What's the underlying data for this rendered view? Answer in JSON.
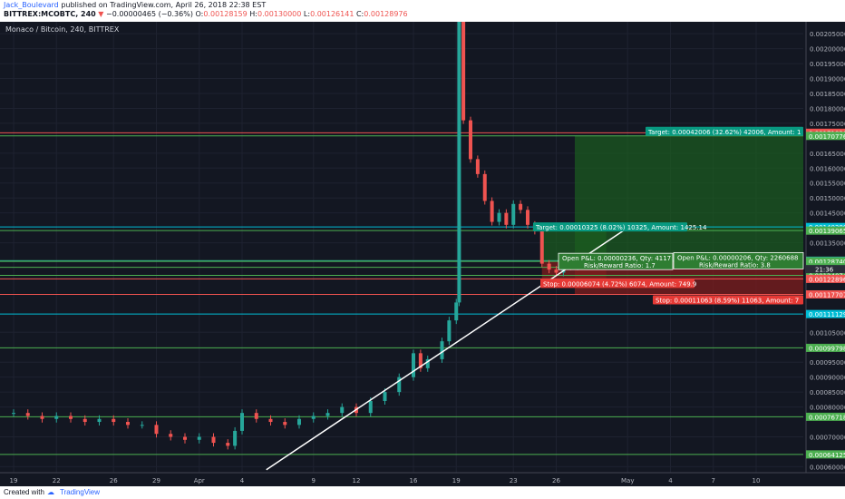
{
  "header": {
    "author": "Jack_Boulevard",
    "published": "published on TradingView.com, April 26, 2018 22:38 EST",
    "symbol": "BITTREX:MCOBTC, 240",
    "arrow": "▼",
    "change": "−0.00000465 (−0.36%)",
    "o_label": "O:",
    "o_value": "0.00128159",
    "h_label": "H:",
    "h_value": "0.00130000",
    "l_label": "L:",
    "l_value": "0.00126141",
    "c_label": "C:",
    "c_value": "0.00128976"
  },
  "chart_title": "Monaco / Bitcoin, 240, BITTREX",
  "footer": {
    "created_with": "Created with",
    "brand": "TradingView"
  },
  "colors": {
    "background": "#131722",
    "up": "#26a69a",
    "down": "#ef5350",
    "green_line": "#4caf50",
    "cyan_line": "#00bcd4",
    "trend": "#ffffff",
    "target_fill": "#1b5e20",
    "stop_fill": "#7f1d1d",
    "label_green": "#089981",
    "label_red": "#e53935"
  },
  "chart_data": {
    "type": "candlestick",
    "title": "Monaco / Bitcoin, 240, BITTREX",
    "y_ticks": [
      "0.00205000",
      "0.00200000",
      "0.00195000",
      "0.00190000",
      "0.00185000",
      "0.00180000",
      "0.00175000",
      "0.00165000",
      "0.00160000",
      "0.00155000",
      "0.00150000",
      "0.00145000",
      "0.00135000",
      "0.00105000",
      "0.00095000",
      "0.00090000",
      "0.00085000",
      "0.00080000",
      "0.00070000",
      "0.00060000"
    ],
    "y_range": [
      0.00058,
      0.00209
    ],
    "x_ticks": [
      {
        "label": "19",
        "d": 0
      },
      {
        "label": "22",
        "d": 3
      },
      {
        "label": "26",
        "d": 7
      },
      {
        "label": "29",
        "d": 10
      },
      {
        "label": "Apr",
        "d": 13
      },
      {
        "label": "4",
        "d": 16
      },
      {
        "label": "9",
        "d": 21
      },
      {
        "label": "12",
        "d": 24
      },
      {
        "label": "16",
        "d": 28
      },
      {
        "label": "19",
        "d": 31
      },
      {
        "label": "23",
        "d": 35
      },
      {
        "label": "26",
        "d": 38
      },
      {
        "label": "May",
        "d": 43
      },
      {
        "label": "4",
        "d": 46
      },
      {
        "label": "7",
        "d": 49
      },
      {
        "label": "10",
        "d": 52
      }
    ],
    "price_levels": [
      {
        "value": "0.00171836",
        "v": 0.00171836,
        "color": "#ef5350"
      },
      {
        "value": "0.00170776",
        "v": 0.00170776,
        "color": "#4caf50"
      },
      {
        "value": "0.00140280",
        "v": 0.0014028,
        "color": "#00bcd4"
      },
      {
        "value": "0.00139065",
        "v": 0.00139065,
        "color": "#4caf50"
      },
      {
        "value": "0.00128979",
        "v": 0.00128979,
        "color": "#4caf50"
      },
      {
        "value": "0.00128976",
        "v": 0.00128976,
        "color": "#26a69a"
      },
      {
        "value": "0.00128740",
        "v": 0.0012874,
        "color": "#4caf50"
      },
      {
        "value": "0.00126770",
        "v": 0.0012677,
        "color": "#4caf50"
      },
      {
        "value": "0.00124074",
        "v": 0.00124074,
        "color": "#4caf50"
      },
      {
        "value": "0.00122896",
        "v": 0.00122896,
        "color": "#ef5350"
      },
      {
        "value": "0.00117707",
        "v": 0.00117707,
        "color": "#ef5350"
      },
      {
        "value": "0.00111129",
        "v": 0.00111129,
        "color": "#00bcd4"
      },
      {
        "value": "0.00099798",
        "v": 0.00099798,
        "color": "#4caf50"
      },
      {
        "value": "0.00076718",
        "v": 0.00076718,
        "color": "#4caf50"
      },
      {
        "value": "0.00064125",
        "v": 0.00064125,
        "color": "#4caf50"
      }
    ],
    "candle_time_label": "21:36",
    "trendline": {
      "d1": 17.7,
      "v1": 0.00059,
      "d2": 43.0,
      "v2": 0.0014
    },
    "candles": [
      {
        "d": 0.0,
        "v": 0.00078
      },
      {
        "d": 1.0,
        "v": 0.00077
      },
      {
        "d": 2.0,
        "v": 0.00076
      },
      {
        "d": 3.0,
        "v": 0.00077
      },
      {
        "d": 4.0,
        "v": 0.00076
      },
      {
        "d": 5.0,
        "v": 0.00075
      },
      {
        "d": 6.0,
        "v": 0.00076
      },
      {
        "d": 7.0,
        "v": 0.00075
      },
      {
        "d": 8.0,
        "v": 0.00074
      },
      {
        "d": 9.0,
        "v": 0.00074
      },
      {
        "d": 10.0,
        "v": 0.00071
      },
      {
        "d": 11.0,
        "v": 0.0007
      },
      {
        "d": 12.0,
        "v": 0.00069
      },
      {
        "d": 13.0,
        "v": 0.0007
      },
      {
        "d": 14.0,
        "v": 0.00068
      },
      {
        "d": 15.0,
        "v": 0.00067
      },
      {
        "d": 15.5,
        "v": 0.00072
      },
      {
        "d": 16.0,
        "v": 0.00078
      },
      {
        "d": 17.0,
        "v": 0.00076
      },
      {
        "d": 18.0,
        "v": 0.00075
      },
      {
        "d": 19.0,
        "v": 0.00074
      },
      {
        "d": 20.0,
        "v": 0.00076
      },
      {
        "d": 21.0,
        "v": 0.00077
      },
      {
        "d": 22.0,
        "v": 0.00078
      },
      {
        "d": 23.0,
        "v": 0.0008
      },
      {
        "d": 24.0,
        "v": 0.00078
      },
      {
        "d": 25.0,
        "v": 0.00082
      },
      {
        "d": 26.0,
        "v": 0.00085
      },
      {
        "d": 27.0,
        "v": 0.0009
      },
      {
        "d": 28.0,
        "v": 0.00098
      },
      {
        "d": 28.5,
        "v": 0.00093
      },
      {
        "d": 29.0,
        "v": 0.00096
      },
      {
        "d": 30.0,
        "v": 0.00102
      },
      {
        "d": 30.5,
        "v": 0.00109
      },
      {
        "d": 31.0,
        "v": 0.00115
      },
      {
        "d": 31.2,
        "v": 0.00209
      },
      {
        "d": 31.5,
        "v": 0.00176
      },
      {
        "d": 32.0,
        "v": 0.00163
      },
      {
        "d": 32.5,
        "v": 0.00158
      },
      {
        "d": 33.0,
        "v": 0.00149
      },
      {
        "d": 33.5,
        "v": 0.00142
      },
      {
        "d": 34.0,
        "v": 0.00145
      },
      {
        "d": 34.5,
        "v": 0.00141
      },
      {
        "d": 35.0,
        "v": 0.00148
      },
      {
        "d": 35.5,
        "v": 0.00146
      },
      {
        "d": 36.0,
        "v": 0.00141
      },
      {
        "d": 36.5,
        "v": 0.00139
      },
      {
        "d": 37.0,
        "v": 0.00128
      },
      {
        "d": 37.5,
        "v": 0.00126
      },
      {
        "d": 38.0,
        "v": 0.00125
      },
      {
        "d": 38.5,
        "v": 0.00128
      },
      {
        "d": 39.0,
        "v": 0.00127
      },
      {
        "d": 39.5,
        "v": 0.00129
      }
    ]
  },
  "positions": [
    {
      "target_label": "Target: 0.00010325 (8.02%) 10325, Amount: 1425.14",
      "open_label": "Open P&L: 0.00000236, Qty: 4117",
      "rr_label": "Risk/Reward Ratio: 1.7",
      "stop_label": "Stop: 0.00006074 (4.72%) 6074, Amount: 749.9"
    },
    {
      "target_label": "Target: 0.00042006 (32.62%) 42006, Amount: 1",
      "open_label": "Open P&L: 0.00000206, Qty: 2260688",
      "rr_label": "Risk/Reward Ratio: 3.8",
      "stop_label": "Stop: 0.00011063 (8.59%) 11063, Amount: 7"
    }
  ]
}
